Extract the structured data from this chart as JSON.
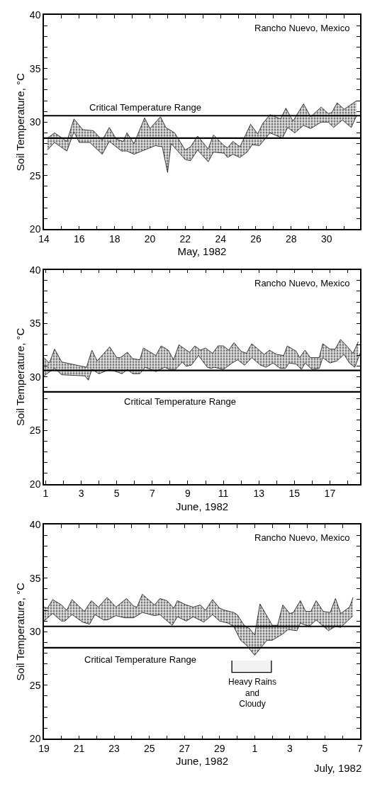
{
  "chart_data": [
    {
      "type": "area",
      "xlabel": "May, 1982",
      "ylabel": "Soil Temperature, °C",
      "annotations": [
        "Rancho Nuevo, Mexico",
        "Critical Temperature Range"
      ],
      "series": [
        {
          "color": "#000000",
          "x": [
            14.2,
            14.6,
            15.3,
            15.7,
            16.0,
            16.6,
            17.3,
            17.7,
            18.4,
            18.7,
            19.1,
            20.3,
            20.7,
            21.0,
            21.2,
            22.0,
            22.3,
            22.7,
            23.3,
            23.6,
            24.2,
            24.4,
            24.7,
            25.1,
            25.5,
            25.8,
            26.2,
            26.8,
            27.5,
            27.8,
            28.2,
            28.7,
            29.1,
            29.7,
            30.1,
            30.4,
            30.9,
            31.4,
            31.7
          ],
          "values": [
            27.4,
            28.1,
            27.3,
            29.1,
            28.1,
            28.1,
            27.0,
            28.2,
            27.3,
            27.3,
            27.0,
            27.8,
            27.7,
            25.3,
            28.0,
            26.5,
            26.4,
            27.4,
            26.3,
            27.2,
            27.1,
            26.7,
            27.0,
            26.7,
            27.2,
            27.9,
            27.8,
            29.0,
            28.5,
            29.5,
            29.0,
            29.7,
            29.4,
            30.0,
            30.0,
            29.5,
            30.2,
            29.5,
            30.6
          ]
        },
        {
          "color": "#000000",
          "x": [
            14.2,
            14.6,
            15.3,
            15.7,
            16.2,
            16.8,
            17.3,
            17.7,
            18.1,
            18.5,
            18.7,
            19.1,
            19.7,
            20.0,
            20.6,
            20.9,
            21.4,
            22.0,
            22.3,
            22.7,
            23.3,
            23.6,
            24.2,
            24.4,
            24.7,
            25.1,
            25.7,
            26.1,
            26.4,
            26.8,
            27.4,
            27.7,
            28.1,
            28.7,
            29.1,
            29.7,
            30.1,
            30.3,
            30.6,
            31.0,
            31.7
          ],
          "values": [
            28.5,
            29.0,
            28.2,
            30.3,
            29.3,
            29.2,
            28.3,
            29.5,
            28.4,
            28.2,
            29.0,
            28.0,
            30.4,
            29.4,
            30.5,
            29.5,
            29.0,
            27.4,
            27.7,
            28.7,
            27.5,
            28.8,
            27.8,
            27.6,
            28.2,
            27.7,
            29.8,
            28.9,
            29.9,
            30.7,
            30.3,
            31.3,
            30.1,
            31.7,
            30.5,
            31.4,
            30.8,
            30.9,
            31.8,
            31.2,
            32.0
          ]
        }
      ],
      "ref_lines": [
        {
          "axis": "y",
          "value": 30.6,
          "color": "#000000"
        },
        {
          "axis": "y",
          "value": 28.5,
          "color": "#000000"
        }
      ],
      "xlim": [
        14,
        31.9
      ],
      "xticks": [
        14,
        {
          "value": 15,
          "label": null
        },
        16,
        {
          "value": 17,
          "label": null
        },
        18,
        {
          "value": 19,
          "label": null
        },
        20,
        {
          "value": 21,
          "label": null
        },
        22,
        {
          "value": 23,
          "label": null
        },
        24,
        {
          "value": 25,
          "label": null
        },
        26,
        {
          "value": 27,
          "label": null
        },
        28,
        {
          "value": 29,
          "label": null
        },
        30,
        {
          "value": 31,
          "label": null
        }
      ],
      "ylim": [
        20,
        40
      ],
      "yticks": [
        20,
        {
          "value": 21,
          "label": null
        },
        {
          "value": 22,
          "label": null
        },
        {
          "value": 23,
          "label": null
        },
        {
          "value": 24,
          "label": null
        },
        25,
        {
          "value": 26,
          "label": null
        },
        {
          "value": 27,
          "label": null
        },
        {
          "value": 28,
          "label": null
        },
        {
          "value": 29,
          "label": null
        },
        30,
        {
          "value": 31,
          "label": null
        },
        {
          "value": 32,
          "label": null
        },
        {
          "value": 33,
          "label": null
        },
        {
          "value": 34,
          "label": null
        },
        35,
        {
          "value": 36,
          "label": null
        },
        {
          "value": 37,
          "label": null
        },
        {
          "value": 38,
          "label": null
        },
        {
          "value": 39,
          "label": null
        },
        40
      ]
    },
    {
      "type": "area",
      "xlabel": "June, 1982",
      "ylabel": "Soil Temperature, °C",
      "annotations": [
        "Rancho Nuevo, Mexico",
        "Critical Temperature Range"
      ],
      "series": [
        {
          "color": "#000000",
          "x": [
            0.9,
            1.5,
            1.9,
            3.2,
            3.4,
            3.6,
            4.0,
            4.6,
            5.3,
            5.6,
            5.9,
            6.3,
            6.6,
            7.2,
            7.7,
            8.0,
            8.3,
            8.7,
            8.9,
            9.2,
            9.6,
            10.1,
            10.3,
            10.5,
            11.0,
            11.5,
            11.8,
            12.2,
            12.6,
            13.1,
            13.4,
            13.8,
            14.2,
            14.5,
            14.7,
            15.1,
            15.4,
            15.6,
            16.0,
            16.4,
            16.6,
            17.0,
            17.4,
            17.8,
            18.1,
            18.4,
            18.7
          ],
          "values": [
            30.1,
            30.8,
            30.2,
            30.1,
            29.7,
            30.7,
            30.3,
            30.7,
            30.3,
            30.7,
            30.3,
            30.3,
            30.9,
            30.5,
            30.9,
            30.7,
            30.7,
            31.4,
            31.0,
            31.1,
            32.0,
            30.9,
            30.8,
            30.9,
            30.7,
            31.3,
            31.6,
            31.1,
            31.8,
            31.1,
            30.9,
            31.3,
            30.8,
            30.8,
            31.3,
            31.2,
            30.7,
            31.3,
            30.7,
            30.8,
            31.8,
            31.3,
            31.5,
            32.1,
            31.3,
            30.9,
            32.2
          ]
        },
        {
          "color": "#000000",
          "x": [
            0.9,
            1.2,
            1.5,
            1.9,
            3.3,
            3.6,
            3.9,
            4.6,
            5.0,
            5.2,
            5.6,
            5.9,
            6.3,
            6.5,
            7.2,
            7.5,
            7.9,
            8.2,
            8.5,
            9.1,
            9.4,
            9.7,
            10.0,
            10.4,
            10.7,
            11.0,
            11.3,
            11.6,
            12.0,
            12.3,
            12.6,
            13.3,
            13.6,
            14.0,
            14.4,
            14.6,
            15.1,
            15.3,
            15.6,
            15.9,
            16.4,
            16.6,
            17.0,
            17.3,
            17.6,
            18.0,
            18.3,
            18.6
          ],
          "values": [
            31.8,
            31.3,
            32.6,
            31.4,
            30.9,
            32.5,
            31.5,
            32.8,
            31.8,
            31.8,
            32.3,
            31.7,
            31.6,
            32.7,
            32.0,
            32.9,
            32.5,
            31.6,
            33.0,
            32.3,
            32.9,
            32.5,
            32.7,
            32.2,
            32.9,
            32.9,
            32.5,
            33.2,
            32.4,
            32.2,
            33.1,
            32.1,
            32.5,
            32.1,
            32.0,
            32.9,
            32.4,
            31.8,
            32.5,
            31.8,
            31.8,
            33.1,
            32.6,
            32.6,
            33.5,
            32.8,
            32.2,
            33.3
          ]
        }
      ],
      "ref_lines": [
        {
          "axis": "y",
          "value": 30.6,
          "color": "#000000"
        },
        {
          "axis": "y",
          "value": 28.6,
          "color": "#000000"
        }
      ],
      "xlim": [
        0.9,
        18.7
      ],
      "xticks": [
        1,
        {
          "value": 2,
          "label": null
        },
        3,
        {
          "value": 4,
          "label": null
        },
        5,
        {
          "value": 6,
          "label": null
        },
        7,
        {
          "value": 8,
          "label": null
        },
        9,
        {
          "value": 10,
          "label": null
        },
        11,
        {
          "value": 12,
          "label": null
        },
        13,
        {
          "value": 14,
          "label": null
        },
        15,
        {
          "value": 16,
          "label": null
        },
        17,
        {
          "value": 18,
          "label": null
        }
      ],
      "ylim": [
        20,
        40
      ],
      "yticks": [
        20,
        {
          "value": 21,
          "label": null
        },
        {
          "value": 22,
          "label": null
        },
        {
          "value": 23,
          "label": null
        },
        {
          "value": 24,
          "label": null
        },
        25,
        {
          "value": 26,
          "label": null
        },
        {
          "value": 27,
          "label": null
        },
        {
          "value": 28,
          "label": null
        },
        {
          "value": 29,
          "label": null
        },
        30,
        {
          "value": 31,
          "label": null
        },
        {
          "value": 32,
          "label": null
        },
        {
          "value": 33,
          "label": null
        },
        {
          "value": 34,
          "label": null
        },
        35,
        {
          "value": 36,
          "label": null
        },
        {
          "value": 37,
          "label": null
        },
        {
          "value": 38,
          "label": null
        },
        {
          "value": 39,
          "label": null
        },
        40
      ]
    },
    {
      "type": "area",
      "xlabel": "June, 1982",
      "ylabel": "Soil Temperature, °C",
      "annotations": [
        "Rancho Nuevo, Mexico",
        "July, 1982",
        "Critical Temperature Range"
      ],
      "series": [
        {
          "color": "#000000",
          "x": [
            "1982-06-19T00:00",
            "1982-06-19T12:00",
            "1982-06-20T00:00",
            "1982-06-20T04:48",
            "1982-06-20T14:24",
            "1982-06-21T04:48",
            "1982-06-21T14:24",
            "1982-06-21T21:36",
            "1982-06-22T09:36",
            "1982-06-22T14:24",
            "1982-06-23T02:24",
            "1982-06-23T14:24",
            "1982-06-24T02:24",
            "1982-06-24T14:24",
            "1982-06-25T07:12",
            "1982-06-25T14:24",
            "1982-06-26T07:12",
            "1982-06-26T14:24",
            "1982-06-27T02:24",
            "1982-06-27T12:00",
            "1982-06-28T02:24",
            "1982-06-28T14:24",
            "1982-06-29T00:00",
            "1982-06-29T12:00",
            "1982-06-29T19:12",
            "1982-06-30T04:48",
            "1982-06-30T12:00",
            "1982-07-01T00:00",
            "1982-07-01T09:36",
            "1982-07-01T16:48",
            "1982-07-02T00:00",
            "1982-07-02T07:12",
            "1982-07-02T14:24",
            "1982-07-02T21:36",
            "1982-07-03T09:36",
            "1982-07-03T14:24",
            "1982-07-04T02:24",
            "1982-07-04T12:00",
            "1982-07-05T04:48",
            "1982-07-05T14:24",
            "1982-07-05T21:36",
            "1982-07-06T14:24"
          ],
          "values": [
            31.0,
            31.7,
            31.0,
            31.0,
            31.6,
            30.9,
            30.7,
            31.6,
            31.1,
            31.1,
            31.5,
            31.3,
            31.3,
            31.8,
            31.5,
            31.6,
            30.6,
            31.4,
            31.0,
            31.4,
            30.9,
            31.6,
            31.0,
            30.8,
            30.5,
            29.2,
            28.8,
            27.8,
            28.6,
            29.2,
            29.2,
            29.5,
            29.8,
            30.2,
            30.1,
            30.8,
            30.5,
            31.1,
            30.1,
            30.5,
            30.4,
            31.5
          ]
        },
        {
          "color": "#000000",
          "x": [
            "1982-06-19T00:00",
            "1982-06-19T04:48",
            "1982-06-19T12:00",
            "1982-06-20T00:00",
            "1982-06-20T07:12",
            "1982-06-20T14:24",
            "1982-06-21T07:12",
            "1982-06-21T16:48",
            "1982-06-22T02:24",
            "1982-06-22T14:24",
            "1982-06-23T02:24",
            "1982-06-23T16:48",
            "1982-06-24T02:24",
            "1982-06-24T07:12",
            "1982-06-24T14:24",
            "1982-06-25T07:12",
            "1982-06-25T14:24",
            "1982-06-26T00:00",
            "1982-06-26T09:36",
            "1982-06-26T14:24",
            "1982-06-27T02:24",
            "1982-06-27T12:00",
            "1982-06-27T21:36",
            "1982-06-28T04:48",
            "1982-06-28T14:24",
            "1982-06-29T00:00",
            "1982-06-29T07:12",
            "1982-06-29T19:12",
            "1982-06-30T00:00",
            "1982-06-30T09:36",
            "1982-06-30T16:48",
            "1982-07-01T00:00",
            "1982-07-01T07:12",
            "1982-07-02T00:00",
            "1982-07-02T07:12",
            "1982-07-02T14:24",
            "1982-07-03T00:00",
            "1982-07-03T04:48",
            "1982-07-03T14:24",
            "1982-07-03T21:36",
            "1982-07-04T04:48",
            "1982-07-04T12:00",
            "1982-07-04T21:36",
            "1982-07-05T07:12",
            "1982-07-05T14:24",
            "1982-07-05T21:36",
            "1982-07-06T09:36",
            "1982-07-06T14:24"
          ],
          "values": [
            32.3,
            32.2,
            33.0,
            32.5,
            32.0,
            33.0,
            31.9,
            32.9,
            32.3,
            33.2,
            32.3,
            33.1,
            32.4,
            32.3,
            33.5,
            32.5,
            33.1,
            32.9,
            32.2,
            32.9,
            32.5,
            32.3,
            32.5,
            32.0,
            33.0,
            32.2,
            32.0,
            31.8,
            31.6,
            30.6,
            30.3,
            29.7,
            32.6,
            30.6,
            30.6,
            32.5,
            31.7,
            31.8,
            32.9,
            31.9,
            31.9,
            32.9,
            31.9,
            31.8,
            33.1,
            31.7,
            32.3,
            33.2
          ]
        }
      ],
      "ref_lines": [
        {
          "axis": "y",
          "value": 30.5,
          "color": "#000000"
        },
        {
          "axis": "y",
          "value": 28.5,
          "color": "#000000"
        }
      ],
      "bands": [
        {
          "axis": "x",
          "from": "1982-06-29T16:48",
          "to": "1982-07-01T22:48",
          "label": "Heavy Rains\nand\nCloudy"
        }
      ],
      "xlim": [
        "1982-06-19",
        "1982-07-07"
      ],
      "xticks": [
        {
          "value": "1982-06-19",
          "label": "19"
        },
        {
          "value": "1982-06-20",
          "label": null
        },
        {
          "value": "1982-06-21",
          "label": "21"
        },
        {
          "value": "1982-06-22",
          "label": null
        },
        {
          "value": "1982-06-23",
          "label": "23"
        },
        {
          "value": "1982-06-24",
          "label": null
        },
        {
          "value": "1982-06-25",
          "label": "25"
        },
        {
          "value": "1982-06-26",
          "label": null
        },
        {
          "value": "1982-06-27",
          "label": "27"
        },
        {
          "value": "1982-06-28",
          "label": null
        },
        {
          "value": "1982-06-29",
          "label": "29"
        },
        {
          "value": "1982-06-30",
          "label": null
        },
        {
          "value": "1982-07-01",
          "label": "1"
        },
        {
          "value": "1982-07-02",
          "label": null
        },
        {
          "value": "1982-07-03",
          "label": "3"
        },
        {
          "value": "1982-07-04",
          "label": null
        },
        {
          "value": "1982-07-05",
          "label": "5"
        },
        {
          "value": "1982-07-06",
          "label": null
        },
        {
          "value": "1982-07-07",
          "label": "7"
        }
      ],
      "ylim": [
        20,
        40
      ],
      "yticks": [
        20,
        {
          "value": 21,
          "label": null
        },
        {
          "value": 22,
          "label": null
        },
        {
          "value": 23,
          "label": null
        },
        {
          "value": 24,
          "label": null
        },
        25,
        {
          "value": 26,
          "label": null
        },
        {
          "value": 27,
          "label": null
        },
        {
          "value": 28,
          "label": null
        },
        {
          "value": 29,
          "label": null
        },
        30,
        {
          "value": 31,
          "label": null
        },
        {
          "value": 32,
          "label": null
        },
        {
          "value": 33,
          "label": null
        },
        {
          "value": 34,
          "label": null
        },
        35,
        {
          "value": 36,
          "label": null
        },
        {
          "value": 37,
          "label": null
        },
        {
          "value": 38,
          "label": null
        },
        {
          "value": 39,
          "label": null
        },
        40
      ]
    }
  ]
}
